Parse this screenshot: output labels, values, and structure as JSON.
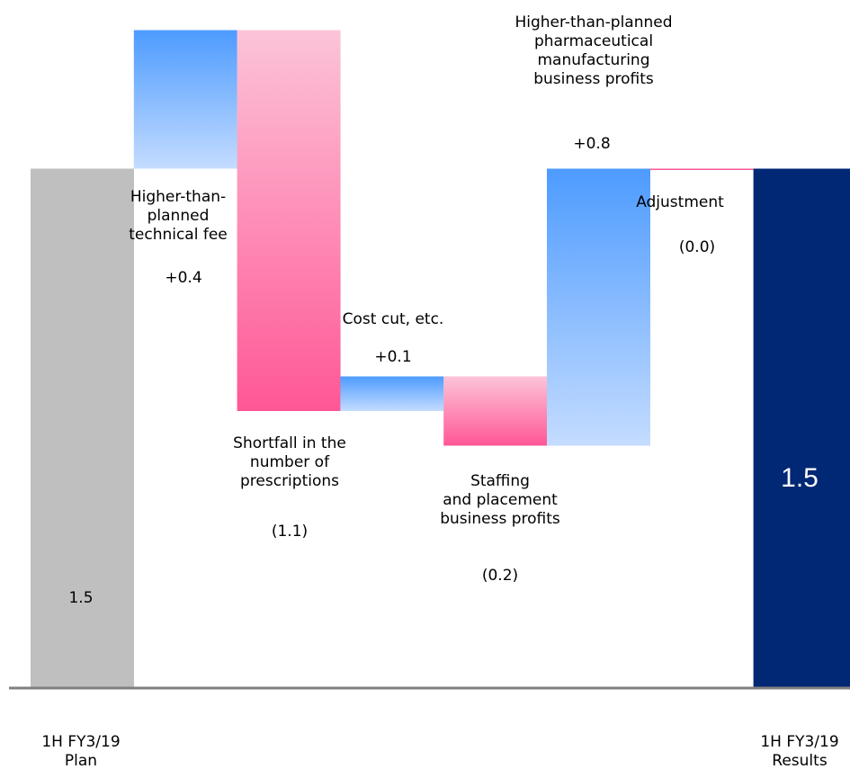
{
  "chart_data": {
    "type": "waterfall",
    "categories": [
      "1H FY3/19 Plan",
      "Higher-than-planned technical fee",
      "Shortfall in the number of prescriptions",
      "Cost cut, etc.",
      "Staffing and placement business profits",
      "Higher-than-planned pharmaceutical manufacturing business profits",
      "Adjustment",
      "1H FY3/19 Results"
    ],
    "steps": [
      {
        "label_lines": [
          "1H FY3/19",
          "Plan"
        ],
        "value_label": "1.5",
        "kind": "total",
        "value": 1.5
      },
      {
        "label_lines": [
          "Higher-than-",
          "planned",
          "technical fee"
        ],
        "value_label": "+0.4",
        "kind": "increase",
        "value": 0.4
      },
      {
        "label_lines": [
          "Shortfall in the",
          "number of",
          "prescriptions"
        ],
        "value_label": "(1.1)",
        "kind": "decrease",
        "value": -1.1
      },
      {
        "label_lines": [
          "Cost cut, etc."
        ],
        "value_label": "+0.1",
        "kind": "increase",
        "value": 0.1
      },
      {
        "label_lines": [
          "Staffing",
          "and placement",
          "business profits"
        ],
        "value_label": "(0.2)",
        "kind": "decrease",
        "value": -0.2
      },
      {
        "label_lines": [
          "Higher-than-planned",
          "pharmaceutical",
          "manufacturing",
          "business profits"
        ],
        "value_label": "+0.8",
        "kind": "increase",
        "value": 0.8
      },
      {
        "label_lines": [
          "Adjustment"
        ],
        "value_label": "(0.0)",
        "kind": "decrease",
        "value": 0.0
      },
      {
        "label_lines": [
          "1H FY3/19",
          "Results"
        ],
        "value_label": "1.5",
        "kind": "total",
        "value": 1.5
      }
    ],
    "colors": {
      "plan_total": "#bfbfbf",
      "results_total": "#002874",
      "increase_top": "#4d9bff",
      "increase_bottom": "#c4dcff",
      "decrease_top": "#fcc4d8",
      "decrease_bottom": "#ff5796",
      "baseline": "#808080"
    }
  }
}
